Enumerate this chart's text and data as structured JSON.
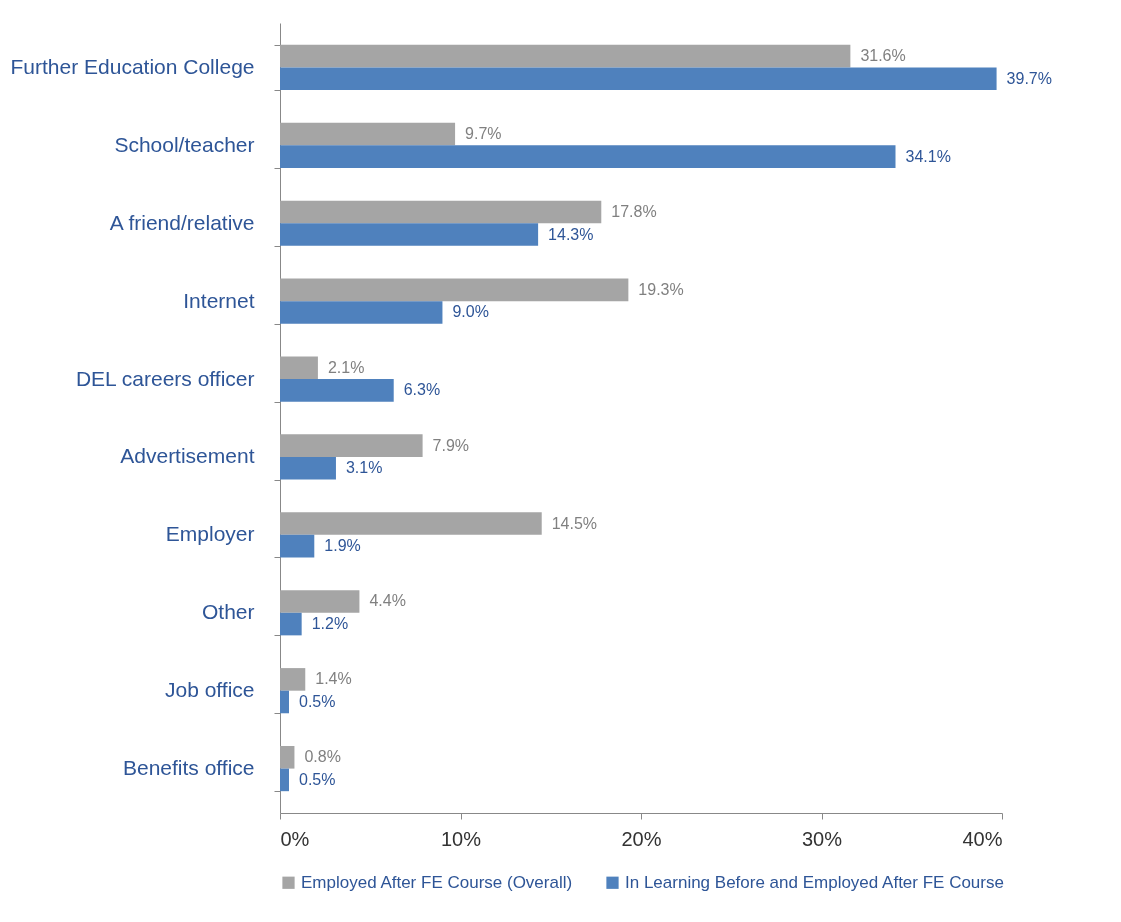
{
  "chart_data": {
    "type": "bar",
    "orientation": "horizontal",
    "categories": [
      "Further Education College",
      "School/teacher",
      "A friend/relative",
      "Internet",
      "DEL careers officer",
      "Advertisement",
      "Employer",
      "Other",
      "Job office",
      "Benefits office"
    ],
    "series": [
      {
        "name": "Employed After FE Course (Overall)",
        "color": "#a5a5a5",
        "values": [
          31.6,
          9.7,
          17.8,
          19.3,
          2.1,
          7.9,
          14.5,
          4.4,
          1.4,
          0.8
        ],
        "value_labels": [
          "31.6%",
          "9.7%",
          "17.8%",
          "19.3%",
          "2.1%",
          "7.9%",
          "14.5%",
          "4.4%",
          "1.4%",
          "0.8%"
        ]
      },
      {
        "name": "In Learning Before and Employed After FE Course",
        "color": "#4f81bd",
        "values": [
          39.7,
          34.1,
          14.3,
          9.0,
          6.3,
          3.1,
          1.9,
          1.2,
          0.5,
          0.5
        ],
        "value_labels": [
          "39.7%",
          "34.1%",
          "14.3%",
          "9.0%",
          "6.3%",
          "3.1%",
          "1.9%",
          "1.2%",
          "0.5%",
          "0.5%"
        ]
      }
    ],
    "xlim": [
      0,
      40
    ],
    "xticks": [
      {
        "value": 0,
        "label": "0%"
      },
      {
        "value": 10,
        "label": "10%"
      },
      {
        "value": 20,
        "label": "20%"
      },
      {
        "value": 30,
        "label": "30%"
      },
      {
        "value": 40,
        "label": "40%"
      }
    ],
    "grid": false,
    "legend": "bottom"
  }
}
